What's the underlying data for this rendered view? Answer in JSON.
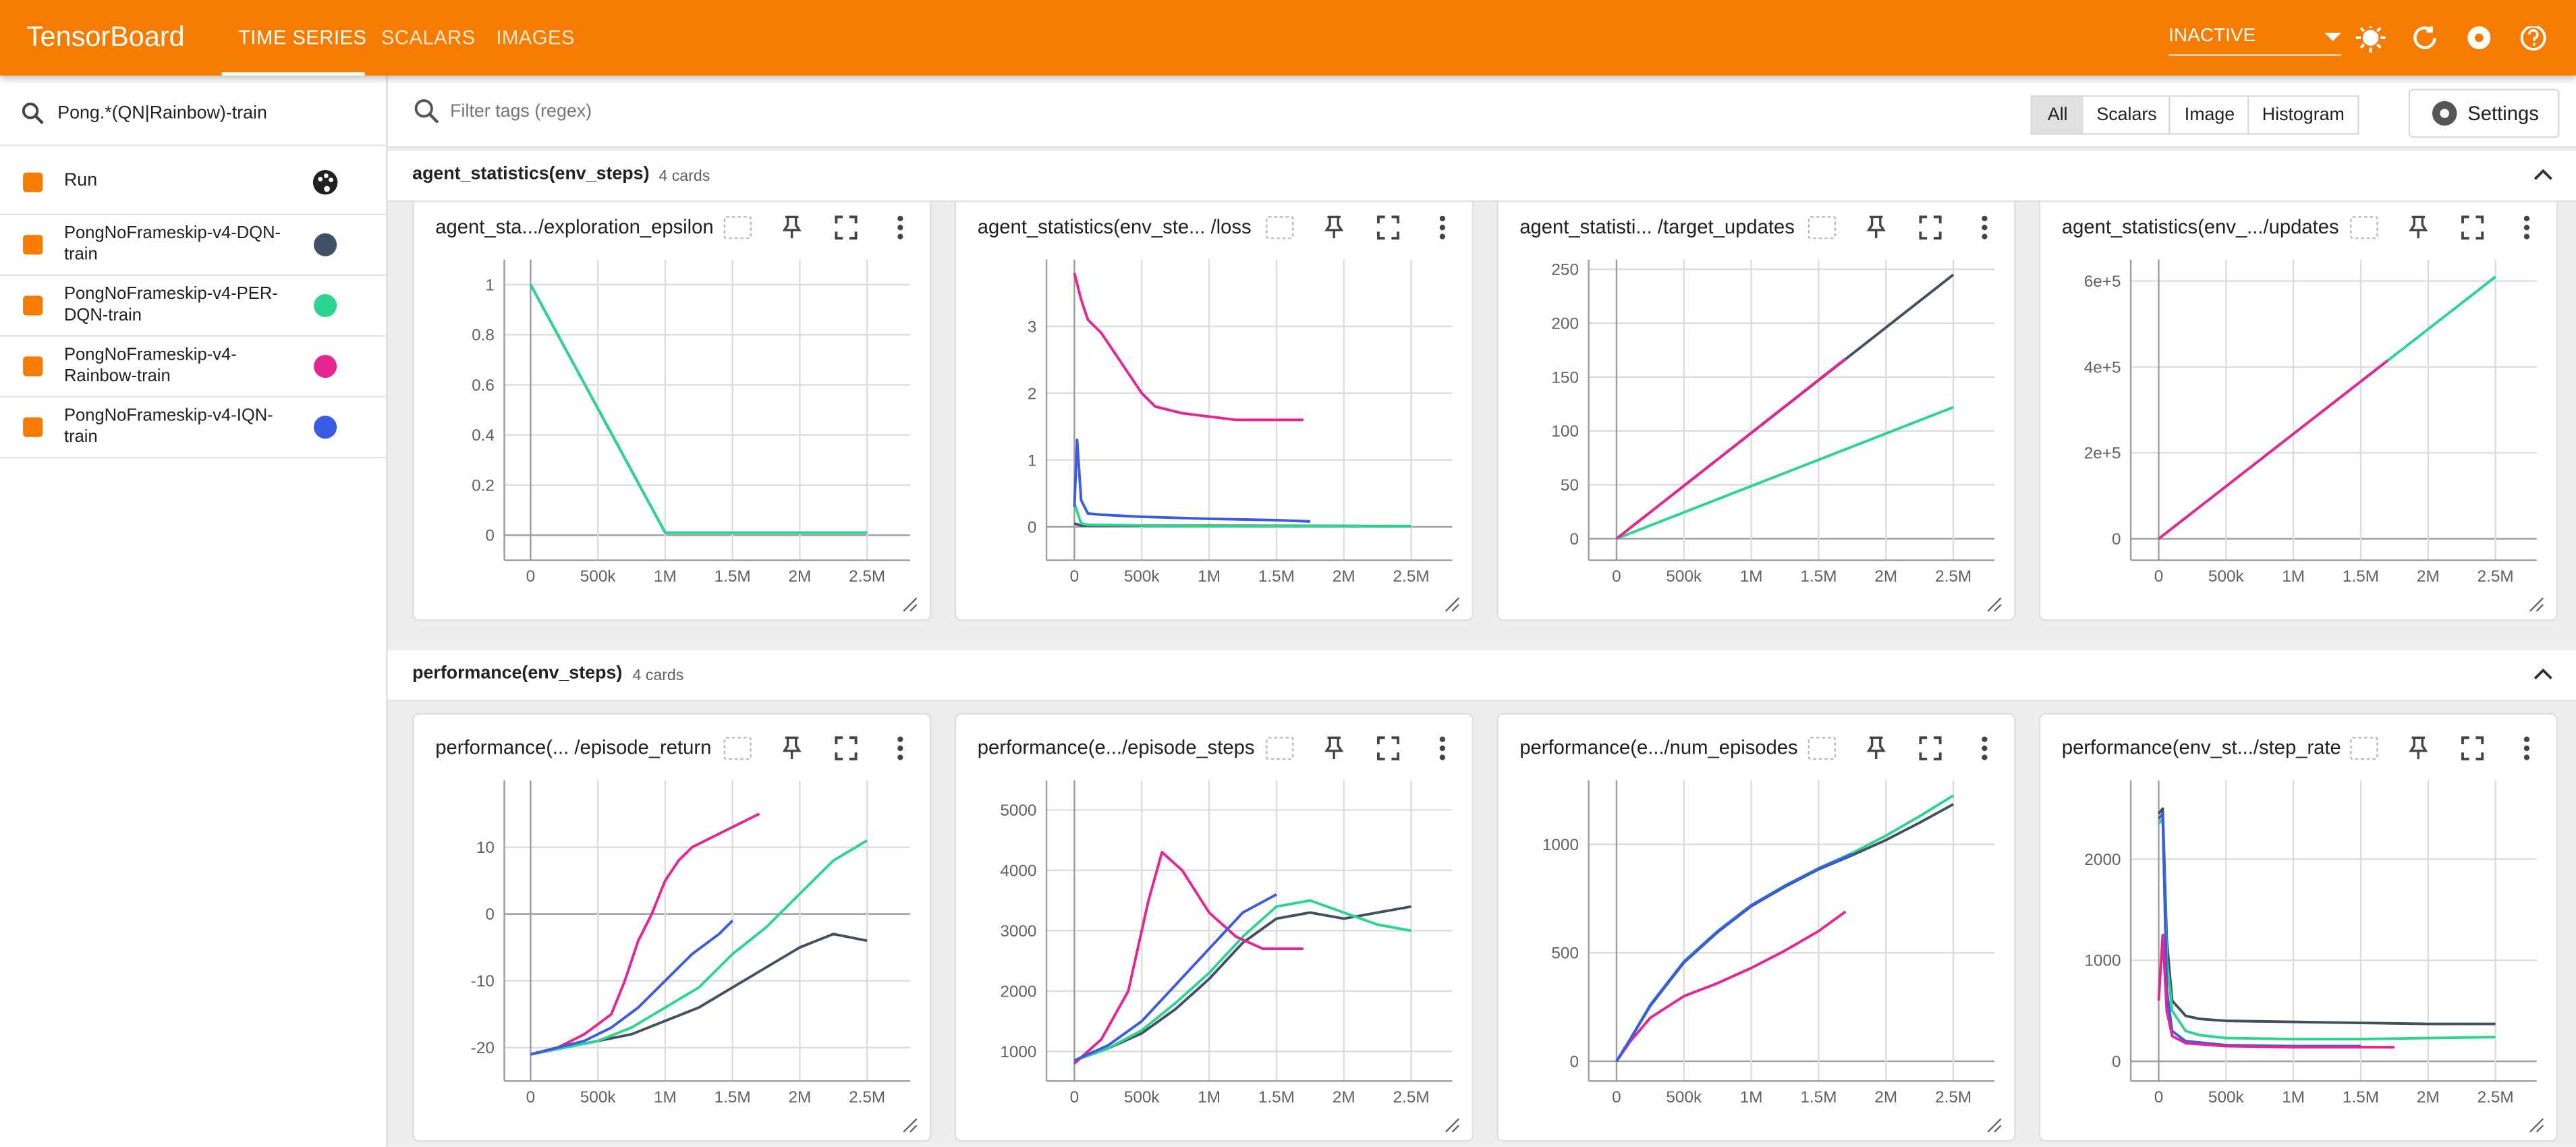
{
  "header": {
    "title": "TensorBoard",
    "tabs": [
      "TIME SERIES",
      "SCALARS",
      "IMAGES"
    ],
    "status": "INACTIVE"
  },
  "sidebar": {
    "filter": "Pong.*(QN|Rainbow)-train",
    "column": "Run",
    "runs": [
      {
        "name": "PongNoFrameskip-v4-DQN-train",
        "color": "#425066"
      },
      {
        "name": "PongNoFrameskip-v4-PER-DQN-train",
        "color": "#2bd58f"
      },
      {
        "name": "PongNoFrameskip-v4-Rainbow-train",
        "color": "#e52592"
      },
      {
        "name": "PongNoFrameskip-v4-IQN-train",
        "color": "#3b5ce0"
      }
    ]
  },
  "toolbar": {
    "filter_placeholder": "Filter tags (regex)",
    "types": [
      "All",
      "Scalars",
      "Image",
      "Histogram"
    ],
    "settings": "Settings"
  },
  "sections": [
    {
      "title": "agent_statistics(env_steps)",
      "count": "4 cards"
    },
    {
      "title": "performance(env_steps)",
      "count": "4 cards"
    }
  ],
  "chart_data": [
    {
      "type": "line",
      "title": "agent_sta.../exploration_epsilon",
      "grid": true,
      "xlim": [
        -195000,
        2820000
      ],
      "xticks": [
        0,
        {
          "value": 500000,
          "label": "500k"
        },
        {
          "value": 1000000,
          "label": "1M"
        },
        {
          "value": 1500000,
          "label": "1.5M"
        },
        {
          "value": 2000000,
          "label": "2M"
        },
        {
          "value": 2500000,
          "label": "2.5M"
        }
      ],
      "ylim": [
        -0.1,
        1.1
      ],
      "yticks": [
        0,
        0.2,
        0.4,
        0.6,
        0.8,
        1
      ],
      "series": [
        {
          "color": "#425066",
          "x": [
            0,
            1000000,
            2500000
          ],
          "values": [
            1,
            0.01,
            0.01
          ]
        },
        {
          "color": "#2bd58f",
          "x": [
            0,
            1000000,
            2500000
          ],
          "values": [
            1,
            0.01,
            0.01
          ]
        }
      ]
    },
    {
      "type": "line",
      "title": "agent_statistics(env_ste... /loss",
      "grid": true,
      "xlim": [
        -207000,
        2805000
      ],
      "xticks": [
        0,
        {
          "value": 500000,
          "label": "500k"
        },
        {
          "value": 1000000,
          "label": "1M"
        },
        {
          "value": 1500000,
          "label": "1.5M"
        },
        {
          "value": 2000000,
          "label": "2M"
        },
        {
          "value": 2500000,
          "label": "2.5M"
        }
      ],
      "ylim": [
        -0.5,
        4
      ],
      "yticks": [
        0,
        1,
        2,
        3
      ],
      "series": [
        {
          "color": "#425066",
          "x": [
            0,
            50000,
            2500000
          ],
          "values": [
            0.05,
            0.02,
            0.01
          ]
        },
        {
          "color": "#2bd58f",
          "x": [
            0,
            50000,
            100000,
            500000,
            1000000,
            1500000,
            2000000,
            2500000
          ],
          "values": [
            0.35,
            0.05,
            0.03,
            0.02,
            0.01,
            0.01,
            0.01,
            0.01
          ]
        },
        {
          "color": "#e52592",
          "x": [
            0,
            50000,
            100000,
            200000,
            300000,
            400000,
            500000,
            600000,
            800000,
            1000000,
            1200000,
            1400000,
            1700000
          ],
          "values": [
            3.8,
            3.4,
            3.1,
            2.9,
            2.6,
            2.3,
            2.0,
            1.8,
            1.7,
            1.65,
            1.6,
            1.6,
            1.6
          ]
        },
        {
          "color": "#3b5ce0",
          "x": [
            0,
            20000,
            50000,
            100000,
            200000,
            500000,
            1000000,
            1500000,
            1750000
          ],
          "values": [
            0.3,
            1.3,
            0.4,
            0.2,
            0.18,
            0.15,
            0.12,
            0.1,
            0.08
          ]
        }
      ]
    },
    {
      "type": "line",
      "title": "agent_statisti... /target_updates",
      "grid": true,
      "xlim": [
        -207000,
        2805000
      ],
      "xticks": [
        0,
        {
          "value": 500000,
          "label": "500k"
        },
        {
          "value": 1000000,
          "label": "1M"
        },
        {
          "value": 1500000,
          "label": "1.5M"
        },
        {
          "value": 2000000,
          "label": "2M"
        },
        {
          "value": 2500000,
          "label": "2.5M"
        }
      ],
      "ylim": [
        -20,
        259
      ],
      "yticks": [
        0,
        50,
        100,
        150,
        200,
        250
      ],
      "series": [
        {
          "color": "#425066",
          "x": [
            0,
            2500000
          ],
          "values": [
            0,
            245
          ]
        },
        {
          "color": "#2bd58f",
          "x": [
            0,
            2500000
          ],
          "values": [
            0,
            122
          ]
        },
        {
          "color": "#e52592",
          "x": [
            0,
            1700000
          ],
          "values": [
            0,
            167
          ]
        }
      ]
    },
    {
      "type": "line",
      "title": "agent_statistics(env_.../updates",
      "grid": true,
      "xlim": [
        -207000,
        2805000
      ],
      "xticks": [
        0,
        {
          "value": 500000,
          "label": "500k"
        },
        {
          "value": 1000000,
          "label": "1M"
        },
        {
          "value": 1500000,
          "label": "1.5M"
        },
        {
          "value": 2000000,
          "label": "2M"
        },
        {
          "value": 2500000,
          "label": "2.5M"
        }
      ],
      "ylim": [
        -50000,
        650000
      ],
      "yticks": [
        0,
        {
          "value": 200000,
          "label": "2e+5"
        },
        {
          "value": 400000,
          "label": "4e+5"
        },
        {
          "value": 600000,
          "label": "6e+5"
        }
      ],
      "series": [
        {
          "color": "#2bd58f",
          "x": [
            0,
            2500000
          ],
          "values": [
            0,
            610000
          ]
        },
        {
          "color": "#e52592",
          "x": [
            0,
            1700000
          ],
          "values": [
            0,
            415000
          ]
        }
      ]
    },
    {
      "type": "line",
      "title": "performance(... /episode_return",
      "grid": true,
      "xlim": [
        -195000,
        2820000
      ],
      "xticks": [
        0,
        {
          "value": 500000,
          "label": "500k"
        },
        {
          "value": 1000000,
          "label": "1M"
        },
        {
          "value": 1500000,
          "label": "1.5M"
        },
        {
          "value": 2000000,
          "label": "2M"
        },
        {
          "value": 2500000,
          "label": "2.5M"
        }
      ],
      "ylim": [
        -25,
        20
      ],
      "yticks": [
        -20,
        -10,
        0,
        10
      ],
      "series": [
        {
          "color": "#425066",
          "x": [
            0,
            250000,
            500000,
            750000,
            1000000,
            1250000,
            1500000,
            1750000,
            2000000,
            2250000,
            2500000
          ],
          "values": [
            -21,
            -20,
            -19,
            -18,
            -16,
            -14,
            -11,
            -8,
            -5,
            -3,
            -4
          ]
        },
        {
          "color": "#2bd58f",
          "x": [
            0,
            250000,
            500000,
            750000,
            1000000,
            1250000,
            1500000,
            1750000,
            2000000,
            2250000,
            2500000
          ],
          "values": [
            -21,
            -20,
            -19,
            -17,
            -14,
            -11,
            -6,
            -2,
            3,
            8,
            11
          ]
        },
        {
          "color": "#e52592",
          "x": [
            0,
            200000,
            400000,
            600000,
            700000,
            800000,
            900000,
            1000000,
            1100000,
            1200000,
            1300000,
            1400000,
            1500000,
            1600000,
            1700000
          ],
          "values": [
            -21,
            -20,
            -18,
            -15,
            -10,
            -4,
            0,
            5,
            8,
            10,
            11,
            12,
            13,
            14,
            15
          ]
        },
        {
          "color": "#3b5ce0",
          "x": [
            0,
            200000,
            400000,
            600000,
            800000,
            1000000,
            1200000,
            1400000,
            1500000
          ],
          "values": [
            -21,
            -20,
            -19,
            -17,
            -14,
            -10,
            -6,
            -3,
            -1
          ]
        }
      ]
    },
    {
      "type": "line",
      "title": "performance(e.../episode_steps",
      "grid": true,
      "xlim": [
        -207000,
        2805000
      ],
      "xticks": [
        0,
        {
          "value": 500000,
          "label": "500k"
        },
        {
          "value": 1000000,
          "label": "1M"
        },
        {
          "value": 1500000,
          "label": "1.5M"
        },
        {
          "value": 2000000,
          "label": "2M"
        },
        {
          "value": 2500000,
          "label": "2.5M"
        }
      ],
      "ylim": [
        510,
        5490
      ],
      "yticks": [
        1000,
        2000,
        3000,
        4000,
        5000
      ],
      "series": [
        {
          "color": "#425066",
          "x": [
            0,
            250000,
            500000,
            750000,
            1000000,
            1250000,
            1500000,
            1750000,
            2000000,
            2250000,
            2500000
          ],
          "values": [
            850,
            1050,
            1300,
            1700,
            2200,
            2800,
            3200,
            3300,
            3200,
            3300,
            3400
          ]
        },
        {
          "color": "#2bd58f",
          "x": [
            0,
            250000,
            500000,
            750000,
            1000000,
            1250000,
            1500000,
            1750000,
            2000000,
            2250000,
            2500000
          ],
          "values": [
            850,
            1050,
            1350,
            1800,
            2300,
            2900,
            3400,
            3500,
            3300,
            3100,
            3000
          ]
        },
        {
          "color": "#e52592",
          "x": [
            0,
            200000,
            400000,
            550000,
            650000,
            800000,
            1000000,
            1200000,
            1400000,
            1700000
          ],
          "values": [
            800,
            1200,
            2000,
            3500,
            4300,
            4000,
            3300,
            2900,
            2700,
            2700
          ]
        },
        {
          "color": "#3b5ce0",
          "x": [
            0,
            250000,
            500000,
            750000,
            1000000,
            1250000,
            1500000
          ],
          "values": [
            850,
            1100,
            1500,
            2100,
            2700,
            3300,
            3600
          ]
        }
      ]
    },
    {
      "type": "line",
      "title": "performance(e.../num_episodes",
      "grid": true,
      "xlim": [
        -207000,
        2805000
      ],
      "xticks": [
        0,
        {
          "value": 500000,
          "label": "500k"
        },
        {
          "value": 1000000,
          "label": "1M"
        },
        {
          "value": 1500000,
          "label": "1.5M"
        },
        {
          "value": 2000000,
          "label": "2M"
        },
        {
          "value": 2500000,
          "label": "2.5M"
        }
      ],
      "ylim": [
        -91,
        1295
      ],
      "yticks": [
        0,
        500,
        1000
      ],
      "series": [
        {
          "color": "#2bd58f",
          "x": [
            0,
            100000,
            250000,
            500000,
            750000,
            1000000,
            1250000,
            1500000,
            1750000,
            2000000,
            2250000,
            2500000
          ],
          "values": [
            0,
            100,
            260,
            460,
            600,
            720,
            810,
            890,
            960,
            1040,
            1130,
            1225
          ]
        },
        {
          "color": "#425066",
          "x": [
            0,
            100000,
            250000,
            500000,
            750000,
            1000000,
            1250000,
            1500000,
            1750000,
            2000000,
            2250000,
            2500000
          ],
          "values": [
            0,
            100,
            255,
            455,
            595,
            715,
            805,
            885,
            950,
            1020,
            1100,
            1185
          ]
        },
        {
          "color": "#e52592",
          "x": [
            0,
            100000,
            250000,
            500000,
            750000,
            1000000,
            1250000,
            1500000,
            1700000
          ],
          "values": [
            0,
            90,
            200,
            300,
            360,
            430,
            510,
            600,
            690
          ]
        },
        {
          "color": "#3b5ce0",
          "x": [
            0,
            100000,
            250000,
            500000,
            750000,
            1000000,
            1250000,
            1500000,
            1750000
          ],
          "values": [
            0,
            100,
            258,
            458,
            598,
            718,
            808,
            888,
            955
          ]
        }
      ]
    },
    {
      "type": "line",
      "title": "performance(env_st.../step_rate",
      "grid": true,
      "xlim": [
        -207000,
        2805000
      ],
      "xticks": [
        0,
        {
          "value": 500000,
          "label": "500k"
        },
        {
          "value": 1000000,
          "label": "1M"
        },
        {
          "value": 1500000,
          "label": "1.5M"
        },
        {
          "value": 2000000,
          "label": "2M"
        },
        {
          "value": 2500000,
          "label": "2.5M"
        }
      ],
      "ylim": [
        -195,
        2780
      ],
      "yticks": [
        0,
        1000,
        2000
      ],
      "series": [
        {
          "color": "#425066",
          "x": [
            0,
            30000,
            60000,
            100000,
            200000,
            300000,
            500000,
            1000000,
            1500000,
            2000000,
            2500000
          ],
          "values": [
            2450,
            2500,
            1200,
            600,
            450,
            420,
            400,
            390,
            380,
            370,
            370
          ]
        },
        {
          "color": "#2bd58f",
          "x": [
            0,
            30000,
            60000,
            100000,
            200000,
            300000,
            500000,
            1000000,
            1500000,
            2000000,
            2500000
          ],
          "values": [
            2350,
            2400,
            1000,
            500,
            300,
            260,
            230,
            220,
            220,
            230,
            240
          ]
        },
        {
          "color": "#3b5ce0",
          "x": [
            0,
            30000,
            60000,
            100000,
            200000,
            500000,
            1000000,
            1500000
          ],
          "values": [
            2400,
            2450,
            700,
            300,
            200,
            160,
            150,
            150
          ]
        },
        {
          "color": "#e52592",
          "x": [
            0,
            30000,
            60000,
            100000,
            200000,
            500000,
            1000000,
            1500000,
            1750000
          ],
          "values": [
            600,
            1250,
            500,
            250,
            180,
            150,
            140,
            140,
            140
          ]
        }
      ]
    }
  ]
}
